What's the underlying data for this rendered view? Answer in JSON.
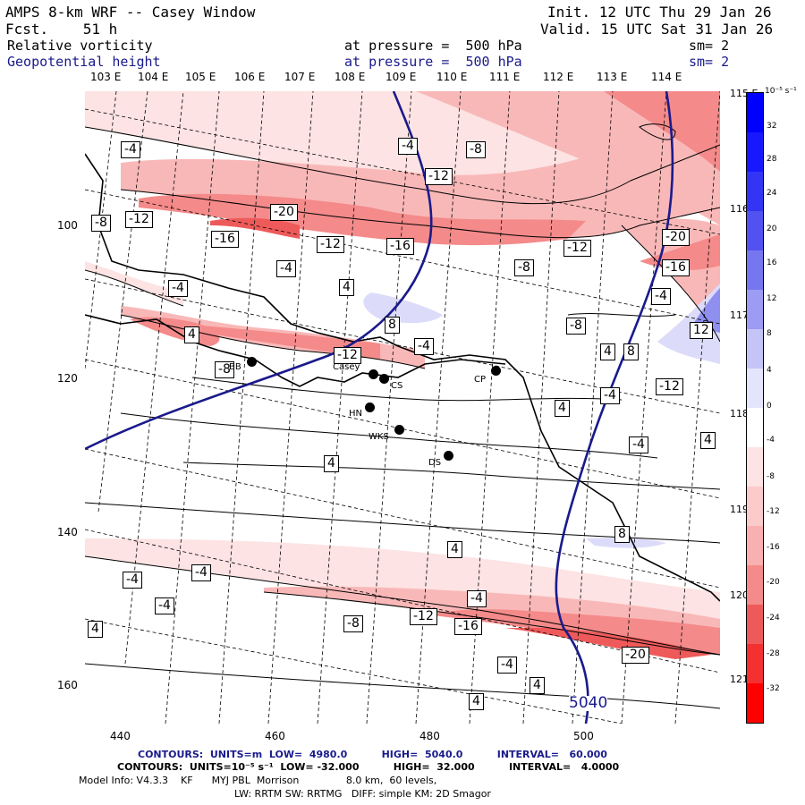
{
  "header": {
    "title": "AMPS 8-km WRF -- Casey Window",
    "forecast": "Fcst.    51 h",
    "init": "Init. 12 UTC Thu 29 Jan 26",
    "valid": "Valid. 15 UTC Sat 31 Jan 26",
    "field1_name": "Relative vorticity",
    "field1_level": "at pressure =  500 hPa",
    "field1_sm": "sm= 2",
    "field2_name": "Geopotential height",
    "field2_level": "at pressure =  500 hPa",
    "field2_sm": "sm= 2"
  },
  "colors": {
    "field2_text": "#1a1a8c",
    "height_contour": "#1a1a8c",
    "positive_max": "#0000ff",
    "negative_max": "#ff0000"
  },
  "top_longitudes": [
    "103 E",
    "104 E",
    "105 E",
    "106 E",
    "107 E",
    "108 E",
    "109 E",
    "110 E",
    "111 E",
    "112 E",
    "113 E",
    "114 E"
  ],
  "right_longitudes": [
    "115 E",
    "116 E",
    "117 E",
    "118 E",
    "119 E",
    "120 E",
    "121 E"
  ],
  "y_ticks": [
    "100",
    "120",
    "140",
    "160"
  ],
  "x_ticks": [
    "440",
    "460",
    "480",
    "500"
  ],
  "colorbar": {
    "unit": "10⁻⁵ s⁻¹",
    "labels": [
      "32",
      "28",
      "24",
      "20",
      "16",
      "12",
      "8",
      "4",
      "0",
      "-4",
      "-8",
      "-12",
      "-16",
      "-20",
      "-24",
      "-28",
      "-32"
    ]
  },
  "stations": [
    {
      "name": "BB"
    },
    {
      "name": "Casey"
    },
    {
      "name": "CS"
    },
    {
      "name": "CP"
    },
    {
      "name": "HN"
    },
    {
      "name": "WKS"
    },
    {
      "name": "DS"
    }
  ],
  "contour_labels": [
    "-4",
    "-8",
    "-12",
    "-20",
    "-16",
    "-12",
    "-16",
    "-4",
    "-8",
    "-20",
    "-16",
    "-4",
    "4",
    "8",
    "-12",
    "-12",
    "-4",
    "-8",
    "-4",
    "12",
    "8",
    "-12",
    "4",
    "-4",
    "-4",
    "4",
    "4",
    "-4",
    "-4",
    "4",
    "-8",
    "8",
    "4",
    "-4",
    "-4",
    "-12",
    "-16",
    "-20",
    "-4",
    "4",
    "4",
    "-8",
    "-8",
    "-12",
    "-4",
    "4",
    "4"
  ],
  "height_label": "5040",
  "footer": {
    "line1": "CONTOURS:  UNITS=m  LOW=  4980.0          HIGH=  5040.0          INTERVAL=   60.000",
    "line2": "CONTOURS:  UNITS=10⁻⁵ s⁻¹  LOW= -32.000          HIGH=  32.000          INTERVAL=   4.0000",
    "line3": "Model Info: V4.3.3    KF      MYJ PBL  Morrison               8.0 km,  60 levels,",
    "line4": "LW: RRTM SW: RRTMG   DIFF: simple KM: 2D Smagor"
  }
}
